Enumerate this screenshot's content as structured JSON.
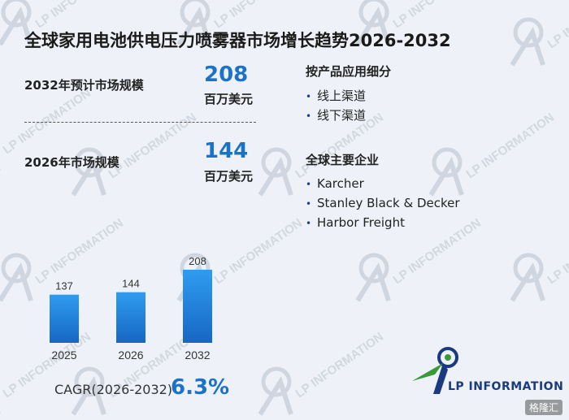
{
  "title": "全球家用电池供电压力喷雾器市场增长趋势2026-2032",
  "stats": [
    {
      "label": "2032年预计市场规模",
      "value": "208",
      "unit": "百万美元"
    },
    {
      "label": "2026年市场规模",
      "value": "144",
      "unit": "百万美元"
    }
  ],
  "segments": {
    "title": "按产品应用细分",
    "items": [
      "线上渠道",
      "线下渠道"
    ]
  },
  "companies": {
    "title": "全球主要企业",
    "items": [
      "Karcher",
      "Stanley Black & Decker",
      "Harbor Freight"
    ]
  },
  "cagr": {
    "label": "CAGR(2026-2032)",
    "value": "6.3%"
  },
  "logo": {
    "text": "LP INFORMATION"
  },
  "corner_badge": "格隆汇",
  "colors": {
    "accent": "#1a73c8",
    "bar_top": "#2f9cf0",
    "bar_bottom": "#1667c4",
    "logo_green": "#3a9a3a",
    "logo_navy": "#1a3a80"
  },
  "chart_data": {
    "type": "bar",
    "categories": [
      "2025",
      "2026",
      "2032"
    ],
    "values": [
      137,
      144,
      208
    ],
    "title": "",
    "xlabel": "",
    "ylabel": "",
    "ylim": [
      0,
      208
    ],
    "data_labels": true,
    "grid": false,
    "legend": "none"
  }
}
